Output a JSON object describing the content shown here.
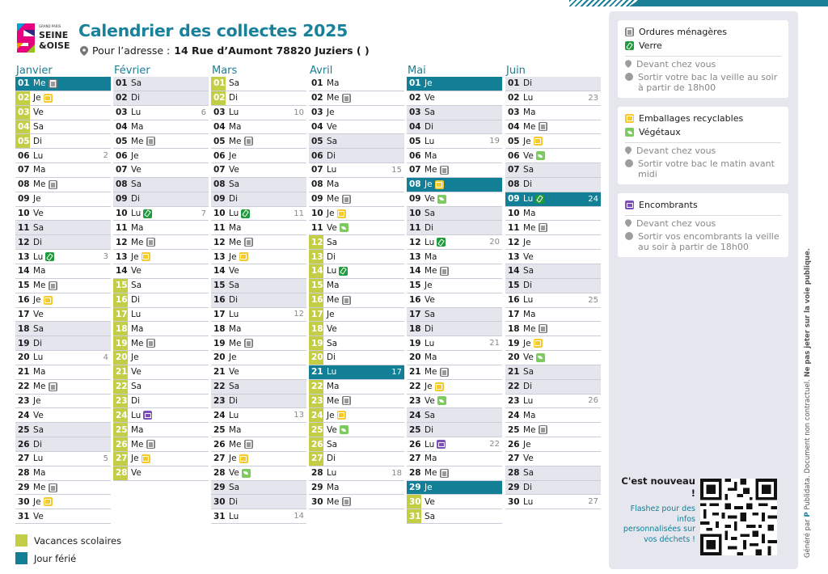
{
  "header": {
    "title": "Calendrier des collectes 2025",
    "address_prefix": "Pour l’adresse :",
    "address_value": "14  Rue d’Aumont 78820 Juziers ( )",
    "logo_small": "GRAND PARIS",
    "logo_main1": "SEINE",
    "logo_main2": "&OISE"
  },
  "months": [
    {
      "name": "Janvier",
      "days": [
        {
          "n": "01",
          "w": "Me",
          "t": "fer",
          "i": [
            "om"
          ]
        },
        {
          "n": "02",
          "w": "Je",
          "t": "vac",
          "i": [
            "em"
          ]
        },
        {
          "n": "03",
          "w": "Ve",
          "t": "vac"
        },
        {
          "n": "04",
          "w": "Sa",
          "t": "vac"
        },
        {
          "n": "05",
          "w": "Di",
          "t": "vac"
        },
        {
          "n": "06",
          "w": "Lu",
          "k": "2"
        },
        {
          "n": "07",
          "w": "Ma"
        },
        {
          "n": "08",
          "w": "Me",
          "i": [
            "om"
          ]
        },
        {
          "n": "09",
          "w": "Je"
        },
        {
          "n": "10",
          "w": "Ve"
        },
        {
          "n": "11",
          "w": "Sa",
          "t": "we"
        },
        {
          "n": "12",
          "w": "Di",
          "t": "we"
        },
        {
          "n": "13",
          "w": "Lu",
          "k": "3",
          "i": [
            "ve"
          ]
        },
        {
          "n": "14",
          "w": "Ma"
        },
        {
          "n": "15",
          "w": "Me",
          "i": [
            "om"
          ]
        },
        {
          "n": "16",
          "w": "Je",
          "i": [
            "em"
          ]
        },
        {
          "n": "17",
          "w": "Ve"
        },
        {
          "n": "18",
          "w": "Sa",
          "t": "we"
        },
        {
          "n": "19",
          "w": "Di",
          "t": "we"
        },
        {
          "n": "20",
          "w": "Lu",
          "k": "4"
        },
        {
          "n": "21",
          "w": "Ma"
        },
        {
          "n": "22",
          "w": "Me",
          "i": [
            "om"
          ]
        },
        {
          "n": "23",
          "w": "Je"
        },
        {
          "n": "24",
          "w": "Ve"
        },
        {
          "n": "25",
          "w": "Sa",
          "t": "we"
        },
        {
          "n": "26",
          "w": "Di",
          "t": "we"
        },
        {
          "n": "27",
          "w": "Lu",
          "k": "5"
        },
        {
          "n": "28",
          "w": "Ma"
        },
        {
          "n": "29",
          "w": "Me",
          "i": [
            "om"
          ]
        },
        {
          "n": "30",
          "w": "Je",
          "i": [
            "em"
          ]
        },
        {
          "n": "31",
          "w": "Ve"
        }
      ]
    },
    {
      "name": "Février",
      "days": [
        {
          "n": "01",
          "w": "Sa",
          "t": "we"
        },
        {
          "n": "02",
          "w": "Di",
          "t": "we"
        },
        {
          "n": "03",
          "w": "Lu",
          "k": "6"
        },
        {
          "n": "04",
          "w": "Ma"
        },
        {
          "n": "05",
          "w": "Me",
          "i": [
            "om"
          ]
        },
        {
          "n": "06",
          "w": "Je"
        },
        {
          "n": "07",
          "w": "Ve"
        },
        {
          "n": "08",
          "w": "Sa",
          "t": "we"
        },
        {
          "n": "09",
          "w": "Di",
          "t": "we"
        },
        {
          "n": "10",
          "w": "Lu",
          "k": "7",
          "i": [
            "ve"
          ]
        },
        {
          "n": "11",
          "w": "Ma"
        },
        {
          "n": "12",
          "w": "Me",
          "i": [
            "om"
          ]
        },
        {
          "n": "13",
          "w": "Je",
          "i": [
            "em"
          ]
        },
        {
          "n": "14",
          "w": "Ve"
        },
        {
          "n": "15",
          "w": "Sa",
          "t": "vac"
        },
        {
          "n": "16",
          "w": "Di",
          "t": "vac"
        },
        {
          "n": "17",
          "w": "Lu",
          "t": "vac"
        },
        {
          "n": "18",
          "w": "Ma",
          "t": "vac"
        },
        {
          "n": "19",
          "w": "Me",
          "t": "vac",
          "i": [
            "om"
          ]
        },
        {
          "n": "20",
          "w": "Je",
          "t": "vac"
        },
        {
          "n": "21",
          "w": "Ve",
          "t": "vac"
        },
        {
          "n": "22",
          "w": "Sa",
          "t": "vac"
        },
        {
          "n": "23",
          "w": "Di",
          "t": "vac"
        },
        {
          "n": "24",
          "w": "Lu",
          "t": "vac",
          "i": [
            "enc"
          ]
        },
        {
          "n": "25",
          "w": "Ma",
          "t": "vac"
        },
        {
          "n": "26",
          "w": "Me",
          "t": "vac",
          "i": [
            "om"
          ]
        },
        {
          "n": "27",
          "w": "Je",
          "t": "vac",
          "i": [
            "em"
          ]
        },
        {
          "n": "28",
          "w": "Ve",
          "t": "vac"
        }
      ]
    },
    {
      "name": "Mars",
      "days": [
        {
          "n": "01",
          "w": "Sa",
          "t": "vac"
        },
        {
          "n": "02",
          "w": "Di",
          "t": "vac"
        },
        {
          "n": "03",
          "w": "Lu",
          "k": "10"
        },
        {
          "n": "04",
          "w": "Ma"
        },
        {
          "n": "05",
          "w": "Me",
          "i": [
            "om"
          ]
        },
        {
          "n": "06",
          "w": "Je"
        },
        {
          "n": "07",
          "w": "Ve"
        },
        {
          "n": "08",
          "w": "Sa",
          "t": "we"
        },
        {
          "n": "09",
          "w": "Di",
          "t": "we"
        },
        {
          "n": "10",
          "w": "Lu",
          "k": "11",
          "i": [
            "ve"
          ]
        },
        {
          "n": "11",
          "w": "Ma"
        },
        {
          "n": "12",
          "w": "Me",
          "i": [
            "om"
          ]
        },
        {
          "n": "13",
          "w": "Je",
          "i": [
            "em"
          ]
        },
        {
          "n": "14",
          "w": "Ve"
        },
        {
          "n": "15",
          "w": "Sa",
          "t": "we"
        },
        {
          "n": "16",
          "w": "Di",
          "t": "we"
        },
        {
          "n": "17",
          "w": "Lu",
          "k": "12"
        },
        {
          "n": "18",
          "w": "Ma"
        },
        {
          "n": "19",
          "w": "Me",
          "i": [
            "om"
          ]
        },
        {
          "n": "20",
          "w": "Je"
        },
        {
          "n": "21",
          "w": "Ve"
        },
        {
          "n": "22",
          "w": "Sa",
          "t": "we"
        },
        {
          "n": "23",
          "w": "Di",
          "t": "we"
        },
        {
          "n": "24",
          "w": "Lu",
          "k": "13"
        },
        {
          "n": "25",
          "w": "Ma"
        },
        {
          "n": "26",
          "w": "Me",
          "i": [
            "om"
          ]
        },
        {
          "n": "27",
          "w": "Je",
          "i": [
            "em"
          ]
        },
        {
          "n": "28",
          "w": "Ve",
          "i": [
            "vg"
          ]
        },
        {
          "n": "29",
          "w": "Sa",
          "t": "we"
        },
        {
          "n": "30",
          "w": "Di",
          "t": "we"
        },
        {
          "n": "31",
          "w": "Lu",
          "k": "14"
        }
      ]
    },
    {
      "name": "Avril",
      "days": [
        {
          "n": "01",
          "w": "Ma"
        },
        {
          "n": "02",
          "w": "Me",
          "i": [
            "om"
          ]
        },
        {
          "n": "03",
          "w": "Je"
        },
        {
          "n": "04",
          "w": "Ve"
        },
        {
          "n": "05",
          "w": "Sa",
          "t": "we"
        },
        {
          "n": "06",
          "w": "Di",
          "t": "we"
        },
        {
          "n": "07",
          "w": "Lu",
          "k": "15"
        },
        {
          "n": "08",
          "w": "Ma"
        },
        {
          "n": "09",
          "w": "Me",
          "i": [
            "om"
          ]
        },
        {
          "n": "10",
          "w": "Je",
          "i": [
            "em"
          ]
        },
        {
          "n": "11",
          "w": "Ve",
          "i": [
            "vg"
          ]
        },
        {
          "n": "12",
          "w": "Sa",
          "t": "vac"
        },
        {
          "n": "13",
          "w": "Di",
          "t": "vac"
        },
        {
          "n": "14",
          "w": "Lu",
          "t": "vac",
          "i": [
            "ve"
          ]
        },
        {
          "n": "15",
          "w": "Ma",
          "t": "vac"
        },
        {
          "n": "16",
          "w": "Me",
          "t": "vac",
          "i": [
            "om"
          ]
        },
        {
          "n": "17",
          "w": "Je",
          "t": "vac"
        },
        {
          "n": "18",
          "w": "Ve",
          "t": "vac"
        },
        {
          "n": "19",
          "w": "Sa",
          "t": "vac"
        },
        {
          "n": "20",
          "w": "Di",
          "t": "vac"
        },
        {
          "n": "21",
          "w": "Lu",
          "t": "fer",
          "k": "17"
        },
        {
          "n": "22",
          "w": "Ma",
          "t": "vac"
        },
        {
          "n": "23",
          "w": "Me",
          "t": "vac",
          "i": [
            "om"
          ]
        },
        {
          "n": "24",
          "w": "Je",
          "t": "vac",
          "i": [
            "em"
          ]
        },
        {
          "n": "25",
          "w": "Ve",
          "t": "vac",
          "i": [
            "vg"
          ]
        },
        {
          "n": "26",
          "w": "Sa",
          "t": "vac"
        },
        {
          "n": "27",
          "w": "Di",
          "t": "vac"
        },
        {
          "n": "28",
          "w": "Lu",
          "k": "18"
        },
        {
          "n": "29",
          "w": "Ma"
        },
        {
          "n": "30",
          "w": "Me",
          "i": [
            "om"
          ]
        }
      ]
    },
    {
      "name": "Mai",
      "days": [
        {
          "n": "01",
          "w": "Je",
          "t": "fer"
        },
        {
          "n": "02",
          "w": "Ve"
        },
        {
          "n": "03",
          "w": "Sa",
          "t": "we"
        },
        {
          "n": "04",
          "w": "Di",
          "t": "we"
        },
        {
          "n": "05",
          "w": "Lu",
          "k": "19"
        },
        {
          "n": "06",
          "w": "Ma"
        },
        {
          "n": "07",
          "w": "Me",
          "i": [
            "om"
          ]
        },
        {
          "n": "08",
          "w": "Je",
          "t": "fer",
          "i": [
            "em"
          ]
        },
        {
          "n": "09",
          "w": "Ve",
          "i": [
            "vg"
          ]
        },
        {
          "n": "10",
          "w": "Sa",
          "t": "we"
        },
        {
          "n": "11",
          "w": "Di",
          "t": "we"
        },
        {
          "n": "12",
          "w": "Lu",
          "k": "20",
          "i": [
            "ve"
          ]
        },
        {
          "n": "13",
          "w": "Ma"
        },
        {
          "n": "14",
          "w": "Me",
          "i": [
            "om"
          ]
        },
        {
          "n": "15",
          "w": "Je"
        },
        {
          "n": "16",
          "w": "Ve"
        },
        {
          "n": "17",
          "w": "Sa",
          "t": "we"
        },
        {
          "n": "18",
          "w": "Di",
          "t": "we"
        },
        {
          "n": "19",
          "w": "Lu",
          "k": "21"
        },
        {
          "n": "20",
          "w": "Ma"
        },
        {
          "n": "21",
          "w": "Me",
          "i": [
            "om"
          ]
        },
        {
          "n": "22",
          "w": "Je",
          "i": [
            "em"
          ]
        },
        {
          "n": "23",
          "w": "Ve",
          "i": [
            "vg"
          ]
        },
        {
          "n": "24",
          "w": "Sa",
          "t": "we"
        },
        {
          "n": "25",
          "w": "Di",
          "t": "we"
        },
        {
          "n": "26",
          "w": "Lu",
          "k": "22",
          "i": [
            "enc"
          ]
        },
        {
          "n": "27",
          "w": "Ma"
        },
        {
          "n": "28",
          "w": "Me",
          "i": [
            "om"
          ]
        },
        {
          "n": "29",
          "w": "Je",
          "t": "fer"
        },
        {
          "n": "30",
          "w": "Ve",
          "t": "vac"
        },
        {
          "n": "31",
          "w": "Sa",
          "t": "vac"
        }
      ]
    },
    {
      "name": "Juin",
      "days": [
        {
          "n": "01",
          "w": "Di",
          "t": "we"
        },
        {
          "n": "02",
          "w": "Lu",
          "k": "23"
        },
        {
          "n": "03",
          "w": "Ma"
        },
        {
          "n": "04",
          "w": "Me",
          "i": [
            "om"
          ]
        },
        {
          "n": "05",
          "w": "Je",
          "i": [
            "em"
          ]
        },
        {
          "n": "06",
          "w": "Ve",
          "i": [
            "vg"
          ]
        },
        {
          "n": "07",
          "w": "Sa",
          "t": "we"
        },
        {
          "n": "08",
          "w": "Di",
          "t": "we"
        },
        {
          "n": "09",
          "w": "Lu",
          "t": "fer",
          "k": "24",
          "i": [
            "ve"
          ]
        },
        {
          "n": "10",
          "w": "Ma"
        },
        {
          "n": "11",
          "w": "Me",
          "i": [
            "om"
          ]
        },
        {
          "n": "12",
          "w": "Je"
        },
        {
          "n": "13",
          "w": "Ve"
        },
        {
          "n": "14",
          "w": "Sa",
          "t": "we"
        },
        {
          "n": "15",
          "w": "Di",
          "t": "we"
        },
        {
          "n": "16",
          "w": "Lu",
          "k": "25"
        },
        {
          "n": "17",
          "w": "Ma"
        },
        {
          "n": "18",
          "w": "Me",
          "i": [
            "om"
          ]
        },
        {
          "n": "19",
          "w": "Je",
          "i": [
            "em"
          ]
        },
        {
          "n": "20",
          "w": "Ve",
          "i": [
            "vg"
          ]
        },
        {
          "n": "21",
          "w": "Sa",
          "t": "we"
        },
        {
          "n": "22",
          "w": "Di",
          "t": "we"
        },
        {
          "n": "23",
          "w": "Lu",
          "k": "26"
        },
        {
          "n": "24",
          "w": "Ma"
        },
        {
          "n": "25",
          "w": "Me",
          "i": [
            "om"
          ]
        },
        {
          "n": "26",
          "w": "Je"
        },
        {
          "n": "27",
          "w": "Ve"
        },
        {
          "n": "28",
          "w": "Sa",
          "t": "we"
        },
        {
          "n": "29",
          "w": "Di",
          "t": "we"
        },
        {
          "n": "30",
          "w": "Lu",
          "k": "27"
        }
      ]
    }
  ],
  "legend": {
    "vacances": "Vacances scolaires",
    "ferie": "Jour férié",
    "colors": {
      "vacances": "#c3cd45",
      "ferie": "#127f96"
    }
  },
  "cards": {
    "c1": {
      "l1": "Ordures ménagères",
      "l2": "Verre",
      "s1": "Devant chez vous",
      "s2": "Sortir votre bac la veille au soir à partir de 18h00"
    },
    "c2": {
      "l1": "Emballages recyclables",
      "l2": "Végétaux",
      "s1": "Devant chez vous",
      "s2": "Sortir votre bac le matin avant midi"
    },
    "c3": {
      "l1": "Encombrants",
      "s1": "Devant chez vous",
      "s2": "Sortir vos encombrants la veille au soir à partir de 18h00"
    }
  },
  "promo": {
    "title": "C'est nouveau !",
    "text": "Flashez pour des infos personnalisées sur vos déchets !"
  },
  "footer": {
    "generated": "Généré par",
    "brand": "Publidata",
    "disclaimer": ". Document non contractuel.",
    "bold": "Ne pas jeter sur la voie publique."
  }
}
